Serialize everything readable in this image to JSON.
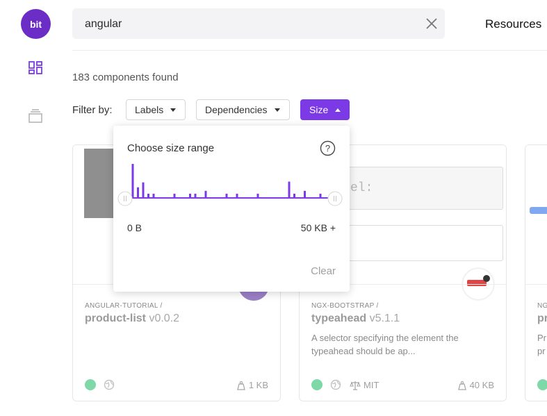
{
  "sidebar": {
    "logo_text": "bit",
    "icons": [
      "components-grid-icon",
      "collections-stack-icon"
    ],
    "accent": "#7b3ae6"
  },
  "header": {
    "search_value": "angular",
    "resources_label": "Resources"
  },
  "results": {
    "count_text": "183 components found",
    "filter_label": "Filter by:",
    "filters": [
      {
        "label": "Labels",
        "active": false
      },
      {
        "label": "Dependencies",
        "active": false
      },
      {
        "label": "Size",
        "active": true
      }
    ]
  },
  "size_popover": {
    "title": "Choose size range",
    "min_label": "0 B",
    "max_label": "50 KB +",
    "clear_label": "Clear",
    "histogram_values": [
      47,
      14,
      21,
      5,
      5,
      0,
      0,
      0,
      5,
      0,
      0,
      5,
      5,
      0,
      9,
      0,
      0,
      0,
      5,
      0,
      5,
      0,
      0,
      0,
      5,
      0,
      0,
      0,
      0,
      0,
      22,
      5,
      0,
      9,
      0,
      0,
      5
    ]
  },
  "cards": [
    {
      "scope": "ANGULAR-TUTORIAL /",
      "name": "product-list",
      "version": "v0.0.2",
      "description": "",
      "size": "1 KB",
      "license": ""
    },
    {
      "scope": "NGX-BOOTSTRAP /",
      "name": "typeahead",
      "version": "v5.1.1",
      "description": "A selector specifying the element the typeahead should be ap...",
      "size": "40 KB",
      "license": "MIT",
      "preview_text": "el:"
    },
    {
      "scope": "NG",
      "name": "pr",
      "version": "",
      "description": "Pr pr"
    }
  ]
}
